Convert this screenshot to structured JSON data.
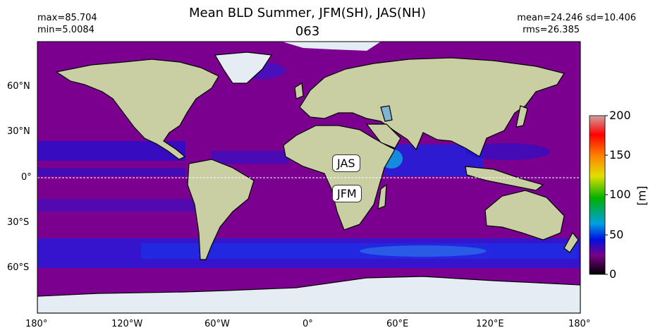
{
  "title": "Mean BLD Summer, JFM(SH), JAS(NH)",
  "subtitle": "063",
  "stats": {
    "max": "max=85.704",
    "min": "min=5.0084",
    "mean_sd": "mean=24.246 sd=10.406",
    "rms": "rms=26.385"
  },
  "lon_ticks": [
    "180°",
    "120°W",
    "60°W",
    "0°",
    "60°E",
    "120°E",
    "180°"
  ],
  "lat_ticks": [
    "60°N",
    "30°N",
    "0°",
    "30°S",
    "60°S"
  ],
  "annotations": {
    "north": "JAS",
    "south": "JFM"
  },
  "colorbar": {
    "label": "[m]",
    "ticks": [
      "0",
      "50",
      "100",
      "150",
      "200"
    ],
    "range": [
      0,
      200
    ],
    "colors": [
      "#000000",
      "#7a008a",
      "#0010e0",
      "#00a0e0",
      "#00b000",
      "#e0e000",
      "#ff8000",
      "#ff0000",
      "#d0a0a0"
    ]
  },
  "colors": {
    "ocean": "#7c0090",
    "land": "#c9cfa3",
    "ice": "#e6ecf3",
    "deep_blue": "#1a10d8"
  }
}
